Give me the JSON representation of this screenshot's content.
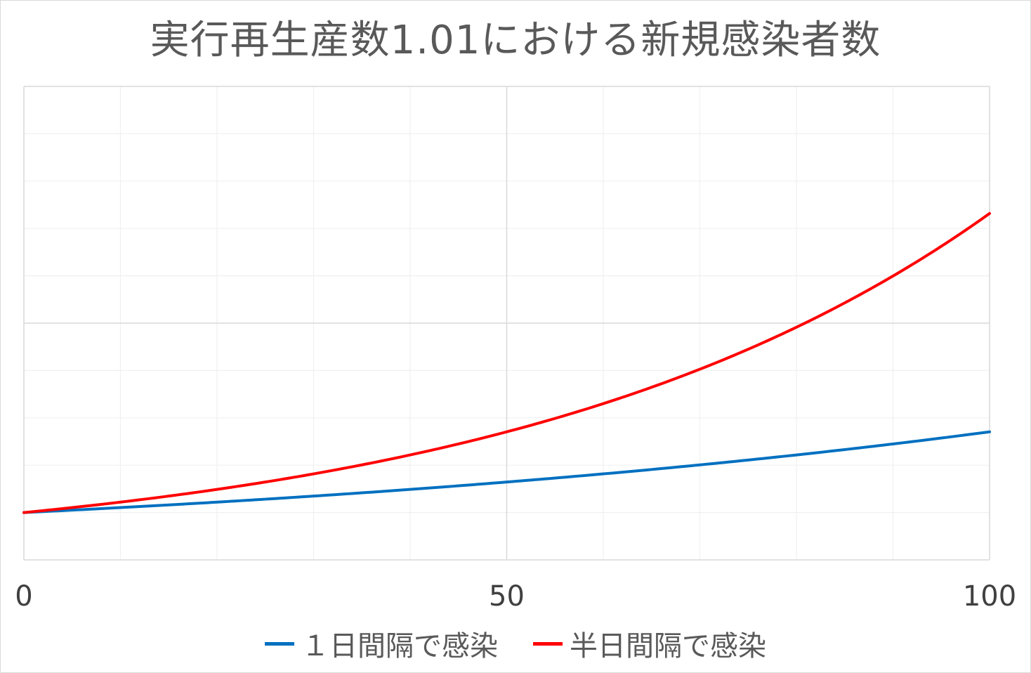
{
  "chart_data": {
    "type": "line",
    "title": "実行再生産数1.01における新規感染者数",
    "xlabel": "",
    "ylabel": "",
    "xlim": [
      0,
      100
    ],
    "x_ticks": [
      0,
      50,
      100
    ],
    "ylim": [
      0,
      10
    ],
    "grid": true,
    "legend_position": "bottom",
    "series": [
      {
        "name": "１日間隔で感染",
        "color": "#0070c0",
        "rate": 1.01,
        "steps_per_unit": 1,
        "start_value": 1
      },
      {
        "name": "半日間隔で感染",
        "color": "#ff0000",
        "rate": 1.01,
        "steps_per_unit": 2,
        "start_value": 1
      }
    ]
  }
}
